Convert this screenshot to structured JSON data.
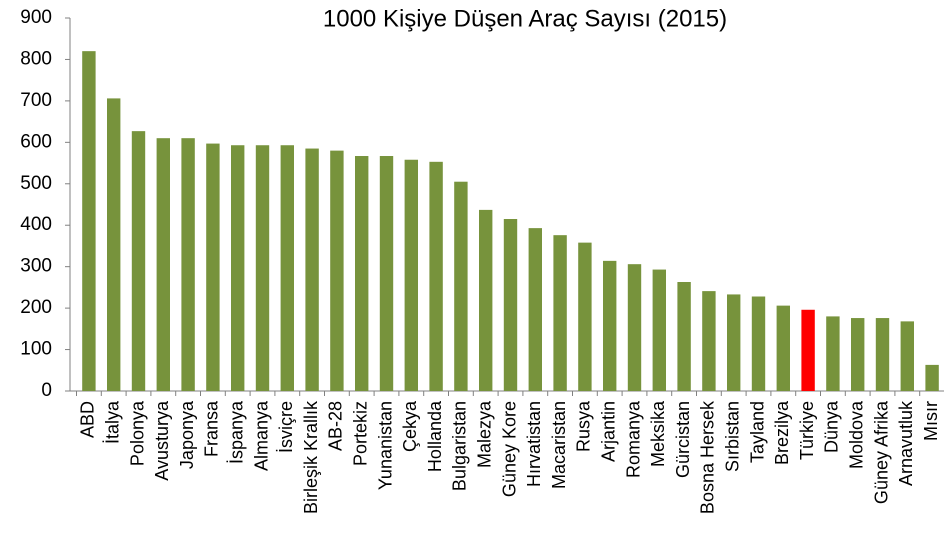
{
  "chart_data": {
    "type": "bar",
    "title": "1000 Kişiye Düşen Araç Sayısı (2015)",
    "categories": [
      "ABD",
      "İtalya",
      "Polonya",
      "Avusturya",
      "Japonya",
      "Fransa",
      "İspanya",
      "Almanya",
      "İsviçre",
      "Birleşik Krallık",
      "AB-28",
      "Portekiz",
      "Yunanistan",
      "Çekya",
      "Hollanda",
      "Bulgaristan",
      "Malezya",
      "Güney Kore",
      "Hırvatistan",
      "Macaristan",
      "Rusya",
      "Arjantin",
      "Romanya",
      "Meksika",
      "Gürcistan",
      "Bosna Hersek",
      "Sırbistan",
      "Tayland",
      "Brezilya",
      "Türkiye",
      "Dünya",
      "Moldova",
      "Güney Afrika",
      "Arnavutluk",
      "Mısır"
    ],
    "values": [
      820,
      706,
      627,
      610,
      610,
      597,
      593,
      593,
      593,
      585,
      580,
      567,
      567,
      558,
      553,
      505,
      437,
      415,
      393,
      376,
      358,
      314,
      306,
      293,
      263,
      241,
      233,
      228,
      206,
      196,
      180,
      176,
      176,
      168,
      63
    ],
    "colors": [
      "#77933c",
      "#77933c",
      "#77933c",
      "#77933c",
      "#77933c",
      "#77933c",
      "#77933c",
      "#77933c",
      "#77933c",
      "#77933c",
      "#77933c",
      "#77933c",
      "#77933c",
      "#77933c",
      "#77933c",
      "#77933c",
      "#77933c",
      "#77933c",
      "#77933c",
      "#77933c",
      "#77933c",
      "#77933c",
      "#77933c",
      "#77933c",
      "#77933c",
      "#77933c",
      "#77933c",
      "#77933c",
      "#77933c",
      "#ff0000",
      "#77933c",
      "#77933c",
      "#77933c",
      "#77933c",
      "#77933c"
    ],
    "ylim": [
      0,
      900
    ],
    "yticks": [
      0,
      100,
      200,
      300,
      400,
      500,
      600,
      700,
      800,
      900
    ],
    "grid": false
  }
}
